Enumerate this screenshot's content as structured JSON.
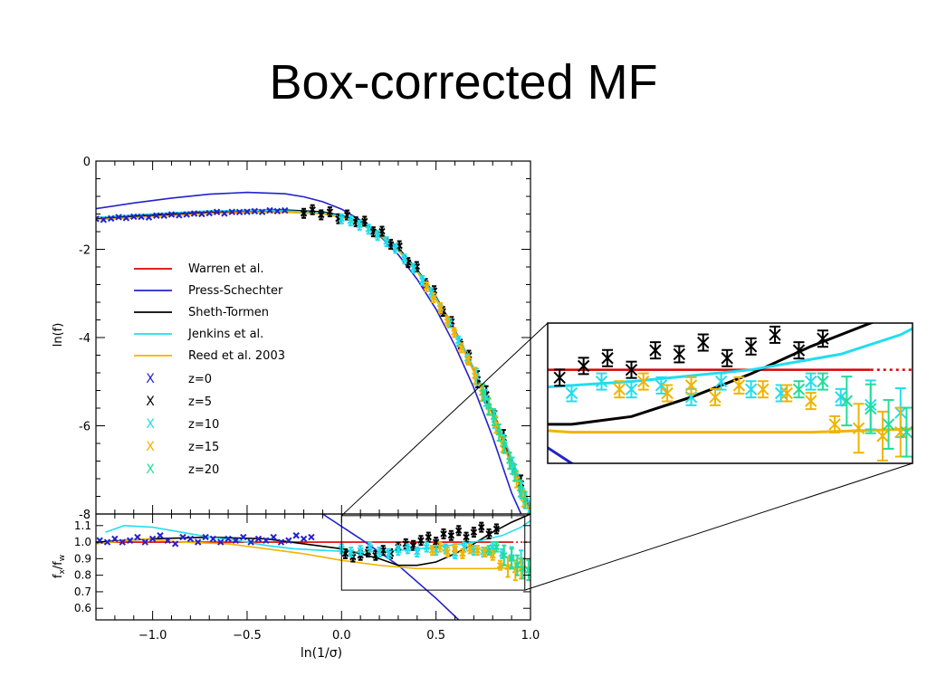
{
  "title": "Box-corrected MF",
  "chart_data": [
    {
      "type": "line",
      "panel": "main",
      "xlabel": "",
      "ylabel": "ln(f)",
      "xlim": [
        -1.3,
        1.0
      ],
      "ylim": [
        -8,
        0
      ],
      "y_ticks": [
        "0",
        "-2",
        "-4",
        "-6",
        "-8"
      ],
      "series": [
        {
          "name": "Warren et al.",
          "color": "#dd0000",
          "x": [
            -1.3,
            -1.1,
            -0.9,
            -0.7,
            -0.5,
            -0.3,
            -0.1,
            0.0,
            0.1,
            0.2,
            0.3,
            0.4,
            0.5,
            0.6,
            0.7,
            0.8,
            0.9,
            1.0
          ],
          "y": [
            -1.32,
            -1.27,
            -1.23,
            -1.18,
            -1.15,
            -1.13,
            -1.16,
            -1.24,
            -1.38,
            -1.62,
            -1.98,
            -2.46,
            -3.08,
            -3.82,
            -4.7,
            -5.68,
            -6.8,
            -7.9
          ]
        },
        {
          "name": "Press-Schechter",
          "color": "#2222cc",
          "x": [
            -1.3,
            -1.1,
            -0.9,
            -0.7,
            -0.5,
            -0.3,
            -0.2,
            -0.1,
            0.0,
            0.1,
            0.2,
            0.3,
            0.4,
            0.5,
            0.6,
            0.7,
            0.8,
            0.9,
            0.95
          ],
          "y": [
            -1.08,
            -0.95,
            -0.84,
            -0.75,
            -0.71,
            -0.74,
            -0.81,
            -0.92,
            -1.09,
            -1.34,
            -1.68,
            -2.12,
            -2.68,
            -3.36,
            -4.18,
            -5.14,
            -6.26,
            -7.52,
            -8.0
          ]
        },
        {
          "name": "Sheth-Tormen",
          "color": "#000000",
          "x": [
            -1.3,
            -1.1,
            -0.9,
            -0.7,
            -0.5,
            -0.3,
            -0.1,
            0.0,
            0.1,
            0.2,
            0.3,
            0.4,
            0.5,
            0.6,
            0.7,
            0.8,
            0.9,
            1.0
          ],
          "y": [
            -1.3,
            -1.25,
            -1.2,
            -1.15,
            -1.12,
            -1.11,
            -1.15,
            -1.23,
            -1.37,
            -1.61,
            -1.97,
            -2.46,
            -3.08,
            -3.84,
            -4.74,
            -5.76,
            -6.9,
            -8.0
          ]
        },
        {
          "name": "Jenkins et al.",
          "color": "#22ddee",
          "x": [
            -1.3,
            -1.1,
            -0.9,
            -0.7,
            -0.5,
            -0.3,
            -0.1,
            0.0,
            0.1,
            0.2,
            0.3,
            0.4,
            0.5,
            0.6,
            0.7,
            0.8,
            0.9,
            1.0
          ],
          "y": [
            -1.28,
            -1.22,
            -1.17,
            -1.13,
            -1.12,
            -1.13,
            -1.17,
            -1.25,
            -1.4,
            -1.64,
            -2.0,
            -2.48,
            -3.1,
            -3.84,
            -4.7,
            -5.66,
            -6.72,
            -7.8
          ]
        },
        {
          "name": "Reed et al. 2003",
          "color": "#f0b400",
          "x": [
            -1.3,
            -1.1,
            -0.9,
            -0.7,
            -0.5,
            -0.3,
            -0.1,
            0.0,
            0.1,
            0.2,
            0.3,
            0.4,
            0.5,
            0.6,
            0.7,
            0.8,
            0.9,
            1.0
          ],
          "y": [
            -1.33,
            -1.28,
            -1.24,
            -1.19,
            -1.17,
            -1.16,
            -1.2,
            -1.28,
            -1.43,
            -1.67,
            -2.03,
            -2.52,
            -3.14,
            -3.89,
            -4.78,
            -5.78,
            -6.92,
            -8.0
          ]
        }
      ],
      "points": [
        {
          "name": "z=0",
          "color": "#2222cc",
          "x_range": [
            -1.3,
            -0.3
          ],
          "offsets": [
            0.01,
            -0.02,
            0.0,
            0.02,
            -0.01,
            0.01,
            0.0,
            -0.02,
            0.01,
            0.0,
            0.02,
            -0.01,
            0.0,
            0.01,
            -0.01,
            0.0,
            0.02,
            -0.02,
            0.01,
            0.0,
            0.0,
            0.01,
            -0.01,
            0.02,
            0.0,
            0.01
          ]
        },
        {
          "name": "z=5",
          "color": "#000000",
          "x_range": [
            -0.2,
            0.95
          ],
          "offsets": [
            -0.04,
            0.05,
            -0.06,
            0.04,
            -0.08,
            0.06,
            -0.03,
            0.07,
            -0.06,
            0.08,
            -0.05,
            0.09,
            -0.07,
            0.06,
            -0.04,
            0.08,
            -0.06,
            0.05,
            -0.08,
            0.07,
            -0.05,
            0.06,
            -0.04,
            0.05,
            -0.06,
            0.04
          ]
        },
        {
          "name": "z=10",
          "color": "#22ddee",
          "x_range": [
            0.0,
            1.0
          ],
          "offsets": [
            -0.07,
            -0.05,
            -0.08,
            -0.06,
            -0.09,
            -0.07,
            -0.05,
            -0.08,
            -0.06,
            -0.07,
            -0.05,
            -0.08,
            -0.06,
            -0.09,
            -0.07,
            -0.05,
            -0.06,
            -0.08,
            -0.07,
            -0.05,
            -0.09,
            -0.06
          ]
        },
        {
          "name": "z=15",
          "color": "#f0b400",
          "x_range": [
            0.45,
            1.0
          ],
          "offsets": [
            -0.08,
            -0.1,
            -0.07,
            -0.11,
            -0.09,
            -0.12,
            -0.08,
            -0.1,
            -0.13,
            -0.09,
            -0.11,
            -0.14,
            -0.1,
            -0.12,
            -0.15,
            -0.11
          ]
        },
        {
          "name": "z=20",
          "color": "#22dd99",
          "x_range": [
            0.75,
            1.0
          ],
          "offsets": [
            -0.05,
            -0.09,
            -0.06,
            -0.1,
            -0.07,
            -0.12,
            -0.08,
            -0.13,
            -0.09,
            -0.11
          ]
        }
      ],
      "legend_placement": "left"
    },
    {
      "type": "line",
      "panel": "ratio",
      "xlabel": "ln(1/σ)",
      "ylabel_main": "f",
      "ylabel_sub1": "x",
      "ylabel_sep": "/f",
      "ylabel_sub2": "w",
      "xlim": [
        -1.3,
        1.0
      ],
      "ylim": [
        0.53,
        1.17
      ],
      "x_ticks": [
        "−1.0",
        "−0.5",
        "0.0",
        "0.5",
        "1.0"
      ],
      "y_ticks": [
        "1.1",
        "1.0",
        "0.9",
        "0.8",
        "0.7",
        "0.6"
      ],
      "series": [
        {
          "name": "Warren et al.",
          "color": "#dd0000",
          "dotted_from": 0.9,
          "x": [
            -1.3,
            0.9,
            1.0
          ],
          "y": [
            1.0,
            1.0,
            1.0
          ]
        },
        {
          "name": "Press-Schechter",
          "color": "#2222cc",
          "x": [
            -0.1,
            0.1,
            0.3,
            0.5,
            0.62
          ],
          "y": [
            1.17,
            1.02,
            0.86,
            0.66,
            0.53
          ]
        },
        {
          "name": "Sheth-Tormen",
          "color": "#000000",
          "x": [
            -1.3,
            -1.0,
            -0.7,
            -0.4,
            -0.2,
            0.0,
            0.2,
            0.3,
            0.4,
            0.5,
            0.6,
            0.7,
            0.8,
            0.9,
            1.0
          ],
          "y": [
            1.0,
            1.02,
            1.03,
            1.02,
            0.99,
            0.96,
            0.9,
            0.86,
            0.86,
            0.88,
            0.93,
            0.99,
            1.06,
            1.12,
            1.17
          ]
        },
        {
          "name": "Jenkins et al.",
          "color": "#22ddee",
          "x": [
            -1.25,
            -1.15,
            -1.0,
            -0.85,
            -0.7,
            -0.55,
            -0.4,
            -0.25,
            -0.1,
            0.1,
            0.3,
            0.5,
            0.7,
            0.85,
            0.95,
            1.0
          ],
          "y": [
            1.06,
            1.1,
            1.09,
            1.06,
            1.03,
            1.01,
            0.98,
            0.96,
            0.95,
            0.94,
            0.95,
            0.97,
            1.0,
            1.04,
            1.09,
            1.13
          ]
        },
        {
          "name": "Reed et al. 2003",
          "color": "#f0b400",
          "x": [
            -1.3,
            -1.05,
            -0.85,
            -0.6,
            -0.4,
            -0.2,
            0.0,
            0.2,
            0.4,
            0.6,
            0.8,
            1.0
          ],
          "y": [
            0.99,
            1.02,
            1.0,
            0.99,
            0.96,
            0.93,
            0.89,
            0.86,
            0.84,
            0.84,
            0.84,
            0.85
          ]
        }
      ],
      "points": [
        {
          "name": "z=0",
          "color": "#2222cc",
          "x": [
            -1.28,
            -1.24,
            -1.2,
            -1.16,
            -1.12,
            -1.08,
            -1.04,
            -1.0,
            -0.96,
            -0.92,
            -0.88,
            -0.84,
            -0.8,
            -0.76,
            -0.72,
            -0.68,
            -0.64,
            -0.6,
            -0.56,
            -0.52,
            -0.48,
            -0.44,
            -0.4,
            -0.36,
            -0.32,
            -0.28,
            -0.24,
            -0.2,
            -0.16
          ],
          "y": [
            1.01,
            1.0,
            1.02,
            1.0,
            1.01,
            1.03,
            1.0,
            1.02,
            1.04,
            1.01,
            0.99,
            1.03,
            1.02,
            1.0,
            1.03,
            1.02,
            1.0,
            1.02,
            1.01,
            1.03,
            1.0,
            1.02,
            1.01,
            1.03,
            1.0,
            1.01,
            1.04,
            1.02,
            1.03
          ]
        },
        {
          "name": "z=5",
          "color": "#000000",
          "x": [
            0.02,
            0.06,
            0.1,
            0.14,
            0.18,
            0.22,
            0.26,
            0.3,
            0.34,
            0.38,
            0.42,
            0.46,
            0.5,
            0.54,
            0.58,
            0.62,
            0.66,
            0.7,
            0.74,
            0.78,
            0.82
          ],
          "y": [
            0.93,
            0.91,
            0.92,
            0.94,
            0.92,
            0.95,
            0.93,
            0.97,
            0.99,
            0.98,
            1.01,
            1.03,
            1.0,
            1.05,
            1.04,
            1.07,
            1.03,
            1.06,
            1.09,
            1.05,
            1.08
          ]
        },
        {
          "name": "z=10",
          "color": "#22ddee",
          "x": [
            0.0,
            0.05,
            0.1,
            0.15,
            0.2,
            0.25,
            0.3,
            0.35,
            0.4,
            0.45,
            0.5,
            0.55,
            0.6,
            0.65,
            0.7,
            0.75,
            0.8,
            0.85,
            0.9,
            0.95
          ],
          "y": [
            0.96,
            0.94,
            0.95,
            0.97,
            0.94,
            0.93,
            0.95,
            0.96,
            0.94,
            0.97,
            0.95,
            0.96,
            0.93,
            0.97,
            0.95,
            0.94,
            0.97,
            0.93,
            0.91,
            0.89
          ]
        },
        {
          "name": "z=15",
          "color": "#f0b400",
          "x": [
            0.48,
            0.52,
            0.56,
            0.6,
            0.64,
            0.68,
            0.72,
            0.76,
            0.8,
            0.84,
            0.88,
            0.92,
            0.95
          ],
          "y": [
            0.95,
            0.97,
            0.94,
            0.96,
            0.93,
            0.96,
            0.95,
            0.94,
            0.92,
            0.86,
            0.85,
            0.83,
            0.84
          ]
        },
        {
          "name": "z=20",
          "color": "#22dd99",
          "x": [
            0.78,
            0.82,
            0.86,
            0.9,
            0.93,
            0.96,
            0.99
          ],
          "y": [
            0.95,
            0.97,
            0.92,
            0.9,
            0.86,
            0.84,
            0.83
          ]
        }
      ],
      "zoom_region": {
        "xlim": [
          0.0,
          0.97
        ],
        "ylim": [
          0.71,
          1.16
        ]
      }
    }
  ],
  "legend": {
    "lines": [
      {
        "label": "Warren et al.",
        "color": "#dd0000"
      },
      {
        "label": "Press-Schechter",
        "color": "#2222cc"
      },
      {
        "label": "Sheth-Tormen",
        "color": "#000000"
      },
      {
        "label": "Jenkins et al.",
        "color": "#22ddee"
      },
      {
        "label": "Reed et al. 2003",
        "color": "#f0b400"
      }
    ],
    "markers": [
      {
        "symbol": "X",
        "label": "z=0",
        "color": "#2222cc"
      },
      {
        "symbol": "X",
        "label": "z=5",
        "color": "#000000"
      },
      {
        "symbol": "X",
        "label": "z=10",
        "color": "#22ddee"
      },
      {
        "symbol": "X",
        "label": "z=15",
        "color": "#f0b400"
      },
      {
        "symbol": "X",
        "label": "z=20",
        "color": "#22dd99"
      }
    ]
  }
}
